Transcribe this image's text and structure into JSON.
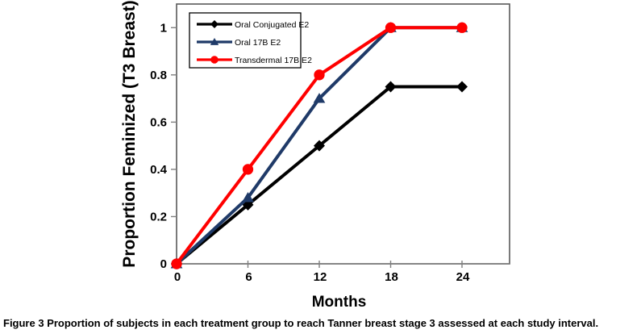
{
  "figure": {
    "caption_label": "Figure 3",
    "caption_text": " Proportion of subjects in each treatment group to reach Tanner breast stage 3 assessed at each study interval."
  },
  "chart_data": {
    "type": "line",
    "title": "",
    "xlabel": "Months",
    "ylabel": "Proportion Feminized (T3 Breast)",
    "x": [
      0,
      6,
      12,
      18,
      24
    ],
    "xlim": [
      0,
      28
    ],
    "ylim": [
      0,
      1.1
    ],
    "x_ticks": [
      0,
      6,
      12,
      18,
      24
    ],
    "x_tick_labels": [
      "0",
      "6",
      "12",
      "18",
      "24"
    ],
    "y_ticks": [
      0,
      0.2,
      0.4,
      0.6,
      0.8,
      1
    ],
    "y_tick_labels": [
      "0",
      "0.2",
      "0.4",
      "0.6",
      "0.8",
      "1"
    ],
    "grid": false,
    "legend_position": "top-left-inside",
    "series": [
      {
        "name": "Oral Conjugated E2",
        "color": "#000000",
        "marker": "diamond",
        "values": [
          0,
          0.25,
          0.5,
          0.75,
          0.75
        ]
      },
      {
        "name": "Oral 17B E2",
        "color": "#1f3a68",
        "marker": "triangle",
        "values": [
          0,
          0.28,
          0.7,
          1,
          1
        ]
      },
      {
        "name": "Transdermal 17B E2",
        "color": "#ff0000",
        "marker": "circle",
        "values": [
          0,
          0.4,
          0.8,
          1,
          1
        ]
      }
    ],
    "colors": {
      "axis_line": "#7f7f7f",
      "plot_border": "#595959",
      "text": "#000000",
      "background": "#ffffff"
    }
  }
}
